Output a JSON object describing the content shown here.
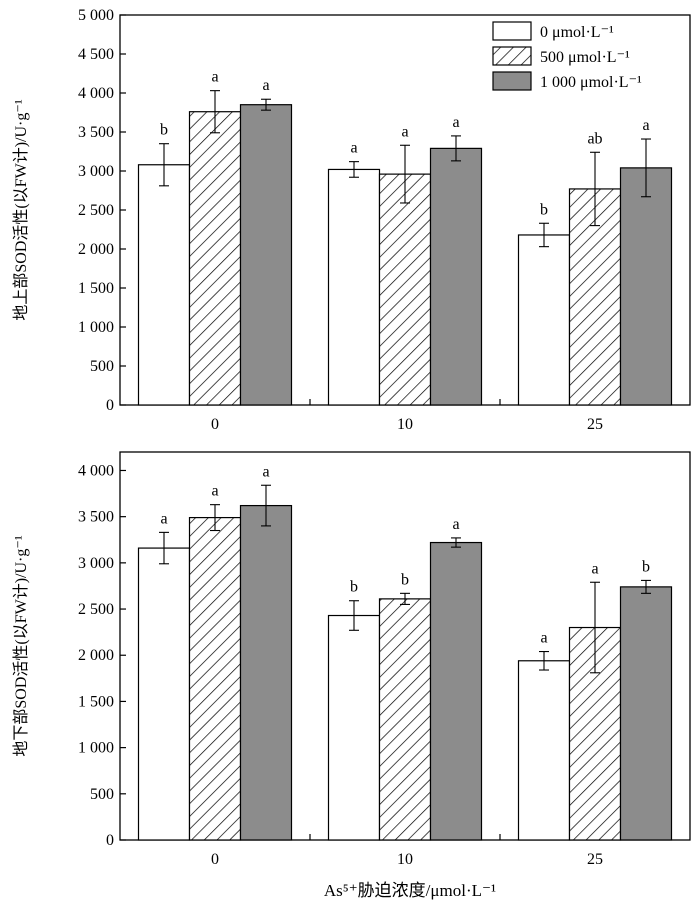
{
  "figure": {
    "xlabel": "As⁵⁺胁迫浓度/μmol·L⁻¹"
  },
  "colors": {
    "series0_fill": "#ffffff",
    "series1_fill": "hatch",
    "series2_fill": "#8c8c8c",
    "stroke": "#000000"
  },
  "chart_data": [
    {
      "type": "bar",
      "categories": [
        "0",
        "10",
        "25"
      ],
      "ylabel": "地上部SOD活性(以FW计)/U·g⁻¹",
      "ylim": [
        0,
        5000
      ],
      "yticks": [
        0,
        500,
        1000,
        1500,
        2000,
        2500,
        3000,
        3500,
        4000,
        4500,
        5000
      ],
      "ytick_labels": [
        "0",
        "500",
        "1 000",
        "1 500",
        "2 000",
        "2 500",
        "3 000",
        "3 500",
        "4 000",
        "4 500",
        "5 000"
      ],
      "legend": "top-right",
      "series": [
        {
          "name": "0 μmol·L⁻¹",
          "values": [
            3080,
            3020,
            2180
          ],
          "errors": [
            270,
            100,
            150
          ],
          "letters": [
            "b",
            "a",
            "b"
          ]
        },
        {
          "name": "500 μmol·L⁻¹",
          "values": [
            3760,
            2960,
            2770
          ],
          "errors": [
            270,
            370,
            470
          ],
          "letters": [
            "a",
            "a",
            "ab"
          ]
        },
        {
          "name": "1 000 μmol·L⁻¹",
          "values": [
            3850,
            3290,
            3040
          ],
          "errors": [
            70,
            160,
            370
          ],
          "letters": [
            "a",
            "a",
            "a"
          ]
        }
      ]
    },
    {
      "type": "bar",
      "categories": [
        "0",
        "10",
        "25"
      ],
      "ylabel": "地下部SOD活性(以FW计)/U·g⁻¹",
      "ylim": [
        0,
        4200
      ],
      "yticks": [
        0,
        500,
        1000,
        1500,
        2000,
        2500,
        3000,
        3500,
        4000
      ],
      "ytick_labels": [
        "0",
        "500",
        "1 000",
        "1 500",
        "2 000",
        "2 500",
        "3 000",
        "3 500",
        "4 000"
      ],
      "series": [
        {
          "name": "0 μmol·L⁻¹",
          "values": [
            3160,
            2430,
            1940
          ],
          "errors": [
            170,
            160,
            100
          ],
          "letters": [
            "a",
            "b",
            "a"
          ]
        },
        {
          "name": "500 μmol·L⁻¹",
          "values": [
            3490,
            2610,
            2300
          ],
          "errors": [
            140,
            60,
            490
          ],
          "letters": [
            "a",
            "b",
            "a"
          ]
        },
        {
          "name": "1 000 μmol·L⁻¹",
          "values": [
            3620,
            3220,
            2740
          ],
          "errors": [
            220,
            50,
            70
          ],
          "letters": [
            "a",
            "a",
            "b"
          ]
        }
      ]
    }
  ]
}
